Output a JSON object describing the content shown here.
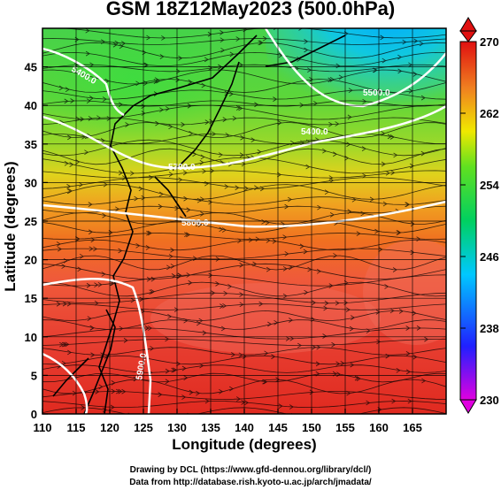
{
  "title": "GSM 18Z12May2023 (500.0hPa)",
  "chart_data": {
    "type": "heatmap",
    "title": "GSM 18Z12May2023 (500.0hPa)",
    "xlabel": "Longitude (degrees)",
    "ylabel": "Latitude  (degrees)",
    "x_ticks": [
      110,
      115,
      120,
      125,
      130,
      135,
      140,
      145,
      150,
      155,
      160,
      165
    ],
    "y_ticks": [
      0,
      5,
      10,
      15,
      20,
      25,
      30,
      35,
      40,
      45
    ],
    "xlim": [
      110,
      170
    ],
    "ylim": [
      0,
      50
    ],
    "colorbar": {
      "ticks": [
        230,
        238,
        246,
        254,
        262,
        270
      ],
      "range": [
        230,
        270
      ],
      "colors": [
        "#e000e0",
        "#2020ff",
        "#00c8ff",
        "#00d060",
        "#60e020",
        "#f0e800",
        "#f08020",
        "#e01010"
      ]
    },
    "contours": [
      {
        "label": "5900.0",
        "color": "#ffffff"
      },
      {
        "label": "5700.0",
        "color": "#ffffff"
      },
      {
        "label": "5800.0",
        "color": "#ffffff"
      },
      {
        "label": "5500.0",
        "color": "#ffffff"
      },
      {
        "label": "5400.0",
        "color": "#ffffff"
      }
    ],
    "grid": true
  },
  "credits": {
    "line1": "Drawing by DCL (https://www.gfd-dennou.org/library/dcl/)",
    "line2": "Data from http://database.rish.kyoto-u.ac.jp/arch/jmadata/"
  }
}
